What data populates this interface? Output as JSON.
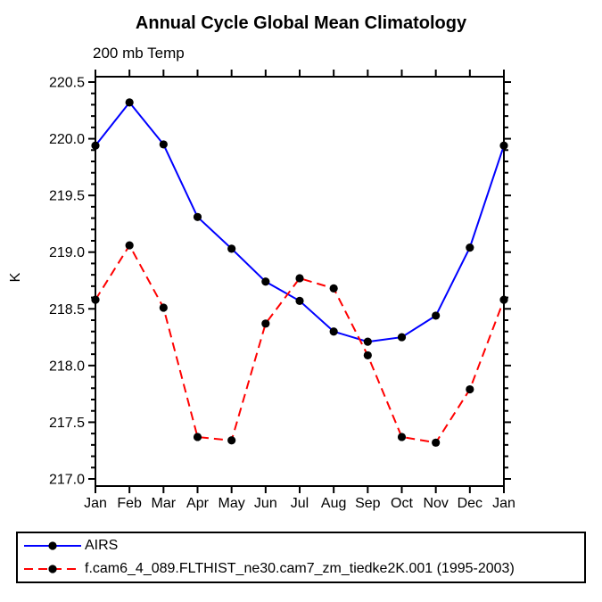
{
  "chart_data": {
    "type": "line",
    "title": "Annual Cycle Global Mean Climatology",
    "subtitle": "200 mb Temp",
    "xlabel": "",
    "ylabel": "K",
    "grid": false,
    "legend_position": "bottom-left-boxed",
    "x_axis": {
      "categories": [
        "Jan",
        "Feb",
        "Mar",
        "Apr",
        "May",
        "Jun",
        "Jul",
        "Aug",
        "Sep",
        "Oct",
        "Nov",
        "Dec",
        "Jan"
      ]
    },
    "y_axis": {
      "label": "K",
      "min": 217.0,
      "max": 220.5,
      "major_ticks": [
        217.0,
        217.5,
        218.0,
        218.5,
        219.0,
        219.5,
        220.0,
        220.5
      ],
      "major_tick_labels": [
        "217.0",
        "217.5",
        "218.0",
        "218.5",
        "219.0",
        "219.5",
        "220.0",
        "220.5"
      ],
      "minor_step": 0.1
    },
    "series": [
      {
        "name": "AIRS",
        "color": "#0000ff",
        "line_style": "solid",
        "marker": "filled-circle",
        "marker_color": "#000000",
        "values": [
          219.94,
          220.32,
          219.95,
          219.31,
          219.03,
          218.74,
          218.57,
          218.3,
          218.21,
          218.25,
          218.44,
          219.04,
          219.94
        ]
      },
      {
        "name": "f.cam6_4_089.FLTHIST_ne30.cam7_zm_tiedke2K.001 (1995-2003)",
        "color": "#ff0000",
        "line_style": "dashed",
        "marker": "filled-circle",
        "marker_color": "#000000",
        "values": [
          218.58,
          219.06,
          218.51,
          217.37,
          217.34,
          218.37,
          218.77,
          218.68,
          218.09,
          217.37,
          217.32,
          217.79,
          218.58
        ]
      }
    ]
  }
}
